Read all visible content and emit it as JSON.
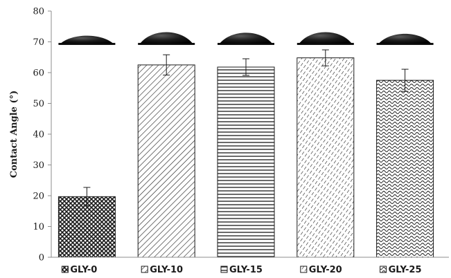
{
  "chart_data": {
    "type": "bar",
    "title": "",
    "xlabel": "",
    "ylabel": "Contact Angle (°)",
    "ylim": [
      0,
      80
    ],
    "yticks": [
      0,
      10,
      20,
      30,
      40,
      50,
      60,
      70,
      80
    ],
    "grid": false,
    "legend": "none",
    "categories": [
      "GLY-0",
      "GLY-10",
      "GLY-15",
      "GLY-20",
      "GLY-25"
    ],
    "values": [
      19.7,
      62.5,
      61.8,
      64.8,
      57.5
    ],
    "errors": [
      3.0,
      3.3,
      2.7,
      2.6,
      3.6
    ],
    "patterns": [
      "crosshatch",
      "diagonal",
      "horizontal",
      "dashed-diagonal",
      "wave"
    ],
    "droplet_images": true,
    "colors": {
      "bar_stroke": "#1a1a1a",
      "pattern": "#1a1a1a",
      "background": "#ffffff",
      "axis": "#8c8c8c"
    }
  }
}
